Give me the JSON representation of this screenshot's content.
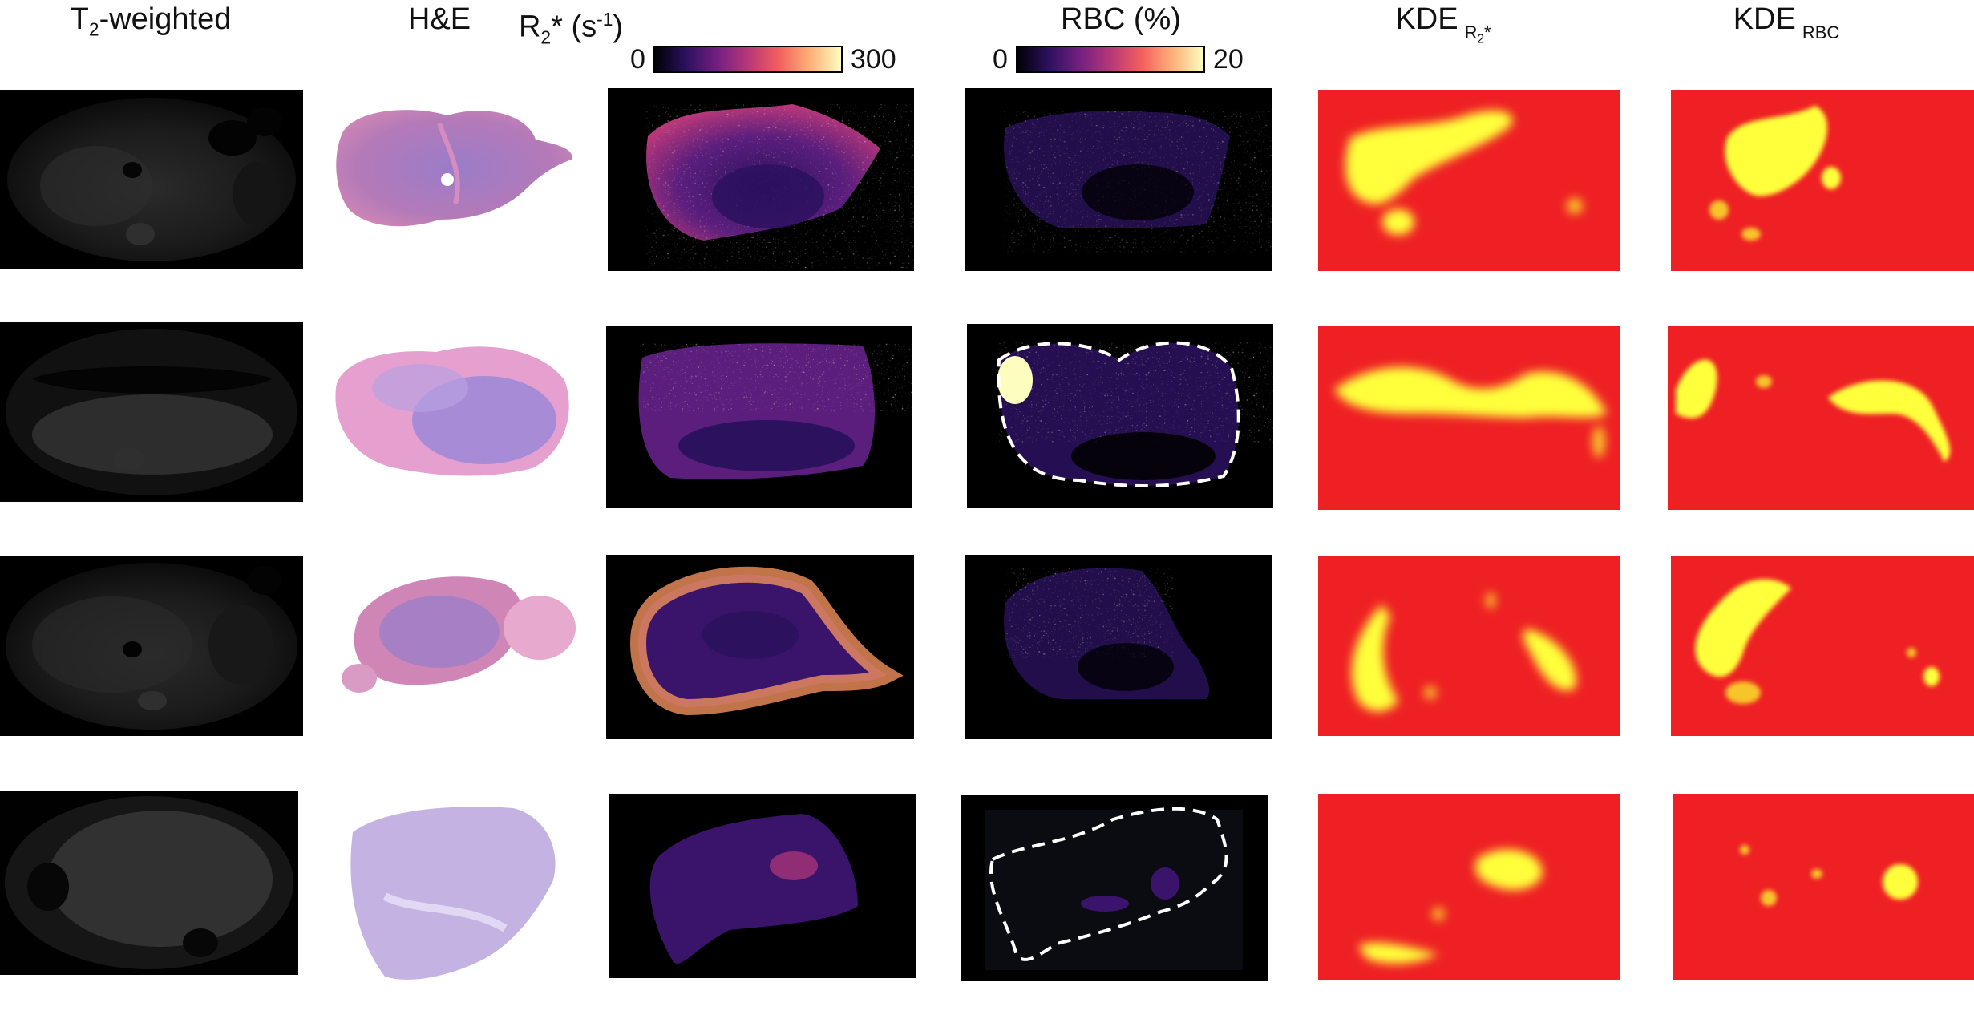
{
  "headers": {
    "t2": {
      "pre": "T",
      "sub": "2",
      "post": "-weighted"
    },
    "he": "H&E",
    "r2": {
      "pre": "R",
      "sub": "2",
      "post": "* (s",
      "sup": "-1",
      "end": ")"
    },
    "rbc": "RBC (%)",
    "kde_r2": {
      "main": "KDE",
      "sub_pre": "R",
      "sub_sub": "2",
      "sub_post": "*"
    },
    "kde_rbc": {
      "main": "KDE",
      "sub": "RBC"
    }
  },
  "colorbars": {
    "r2": {
      "min": "0",
      "max": "300"
    },
    "rbc": {
      "min": "0",
      "max": "20"
    }
  },
  "colors": {
    "kde_background": "#ee2024",
    "kde_hot": "#ffff3a",
    "map_background": "#000000"
  },
  "rows": 4
}
